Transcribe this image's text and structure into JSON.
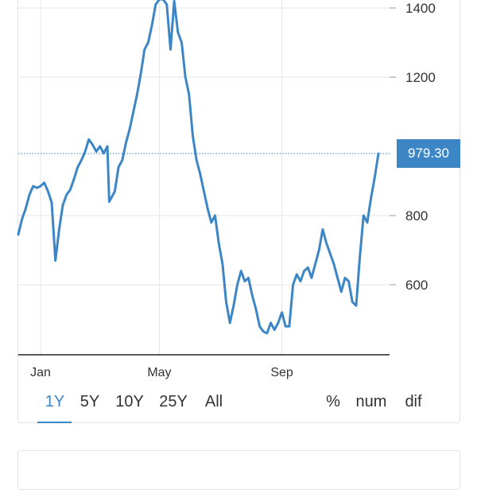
{
  "chart_data": {
    "type": "line",
    "title": "",
    "xlabel": "",
    "ylabel": "",
    "ylim": [
      420,
      1425
    ],
    "xlim": [
      0,
      1
    ],
    "y_ticks": [
      1400,
      1200,
      800,
      600
    ],
    "x_ticks": [
      {
        "label": "Jan",
        "x": 0.06
      },
      {
        "label": "May",
        "x": 0.38
      },
      {
        "label": "Sep",
        "x": 0.71
      }
    ],
    "grid": true,
    "last_value": 979.3,
    "last_value_label": "979.30",
    "series": [
      {
        "color": "#3d86c6",
        "points": [
          [
            0.0,
            745
          ],
          [
            0.01,
            790
          ],
          [
            0.02,
            820
          ],
          [
            0.03,
            860
          ],
          [
            0.04,
            885
          ],
          [
            0.05,
            880
          ],
          [
            0.06,
            885
          ],
          [
            0.07,
            895
          ],
          [
            0.08,
            870
          ],
          [
            0.09,
            838
          ],
          [
            0.1,
            670
          ],
          [
            0.11,
            760
          ],
          [
            0.12,
            830
          ],
          [
            0.13,
            860
          ],
          [
            0.14,
            875
          ],
          [
            0.15,
            905
          ],
          [
            0.16,
            940
          ],
          [
            0.17,
            960
          ],
          [
            0.18,
            985
          ],
          [
            0.19,
            1020
          ],
          [
            0.2,
            1005
          ],
          [
            0.21,
            985
          ],
          [
            0.22,
            1000
          ],
          [
            0.23,
            980
          ],
          [
            0.24,
            1000
          ],
          [
            0.245,
            840
          ],
          [
            0.26,
            870
          ],
          [
            0.27,
            940
          ],
          [
            0.28,
            960
          ],
          [
            0.29,
            1010
          ],
          [
            0.3,
            1050
          ],
          [
            0.31,
            1100
          ],
          [
            0.32,
            1150
          ],
          [
            0.33,
            1210
          ],
          [
            0.34,
            1280
          ],
          [
            0.35,
            1300
          ],
          [
            0.36,
            1350
          ],
          [
            0.37,
            1410
          ],
          [
            0.38,
            1425
          ],
          [
            0.39,
            1425
          ],
          [
            0.4,
            1410
          ],
          [
            0.41,
            1280
          ],
          [
            0.42,
            1420
          ],
          [
            0.43,
            1330
          ],
          [
            0.44,
            1300
          ],
          [
            0.45,
            1200
          ],
          [
            0.46,
            1150
          ],
          [
            0.47,
            1030
          ],
          [
            0.48,
            960
          ],
          [
            0.49,
            920
          ],
          [
            0.5,
            870
          ],
          [
            0.51,
            820
          ],
          [
            0.52,
            780
          ],
          [
            0.53,
            800
          ],
          [
            0.54,
            720
          ],
          [
            0.55,
            660
          ],
          [
            0.56,
            550
          ],
          [
            0.57,
            490
          ],
          [
            0.58,
            540
          ],
          [
            0.59,
            600
          ],
          [
            0.6,
            640
          ],
          [
            0.61,
            610
          ],
          [
            0.62,
            620
          ],
          [
            0.63,
            570
          ],
          [
            0.64,
            530
          ],
          [
            0.65,
            480
          ],
          [
            0.66,
            465
          ],
          [
            0.67,
            460
          ],
          [
            0.68,
            490
          ],
          [
            0.69,
            470
          ],
          [
            0.7,
            490
          ],
          [
            0.71,
            520
          ],
          [
            0.72,
            480
          ],
          [
            0.73,
            480
          ],
          [
            0.74,
            600
          ],
          [
            0.75,
            630
          ],
          [
            0.76,
            610
          ],
          [
            0.77,
            640
          ],
          [
            0.78,
            650
          ],
          [
            0.79,
            620
          ],
          [
            0.8,
            660
          ],
          [
            0.81,
            700
          ],
          [
            0.82,
            760
          ],
          [
            0.83,
            720
          ],
          [
            0.84,
            690
          ],
          [
            0.85,
            660
          ],
          [
            0.86,
            620
          ],
          [
            0.87,
            580
          ],
          [
            0.88,
            620
          ],
          [
            0.89,
            610
          ],
          [
            0.9,
            550
          ],
          [
            0.91,
            540
          ],
          [
            0.92,
            680
          ],
          [
            0.93,
            800
          ],
          [
            0.94,
            780
          ],
          [
            0.95,
            850
          ],
          [
            0.96,
            910
          ],
          [
            0.97,
            979
          ]
        ]
      }
    ]
  },
  "range_buttons": {
    "btn_1y": "1Y",
    "btn_5y": "5Y",
    "btn_10y": "10Y",
    "btn_25y": "25Y",
    "btn_all": "All"
  },
  "mode_buttons": {
    "btn_pct": "%",
    "btn_num": "num",
    "btn_dif": "dif"
  },
  "colors": {
    "accent": "#3d86c6",
    "line": "#3d86c6",
    "grid": "#e6e6e6"
  }
}
